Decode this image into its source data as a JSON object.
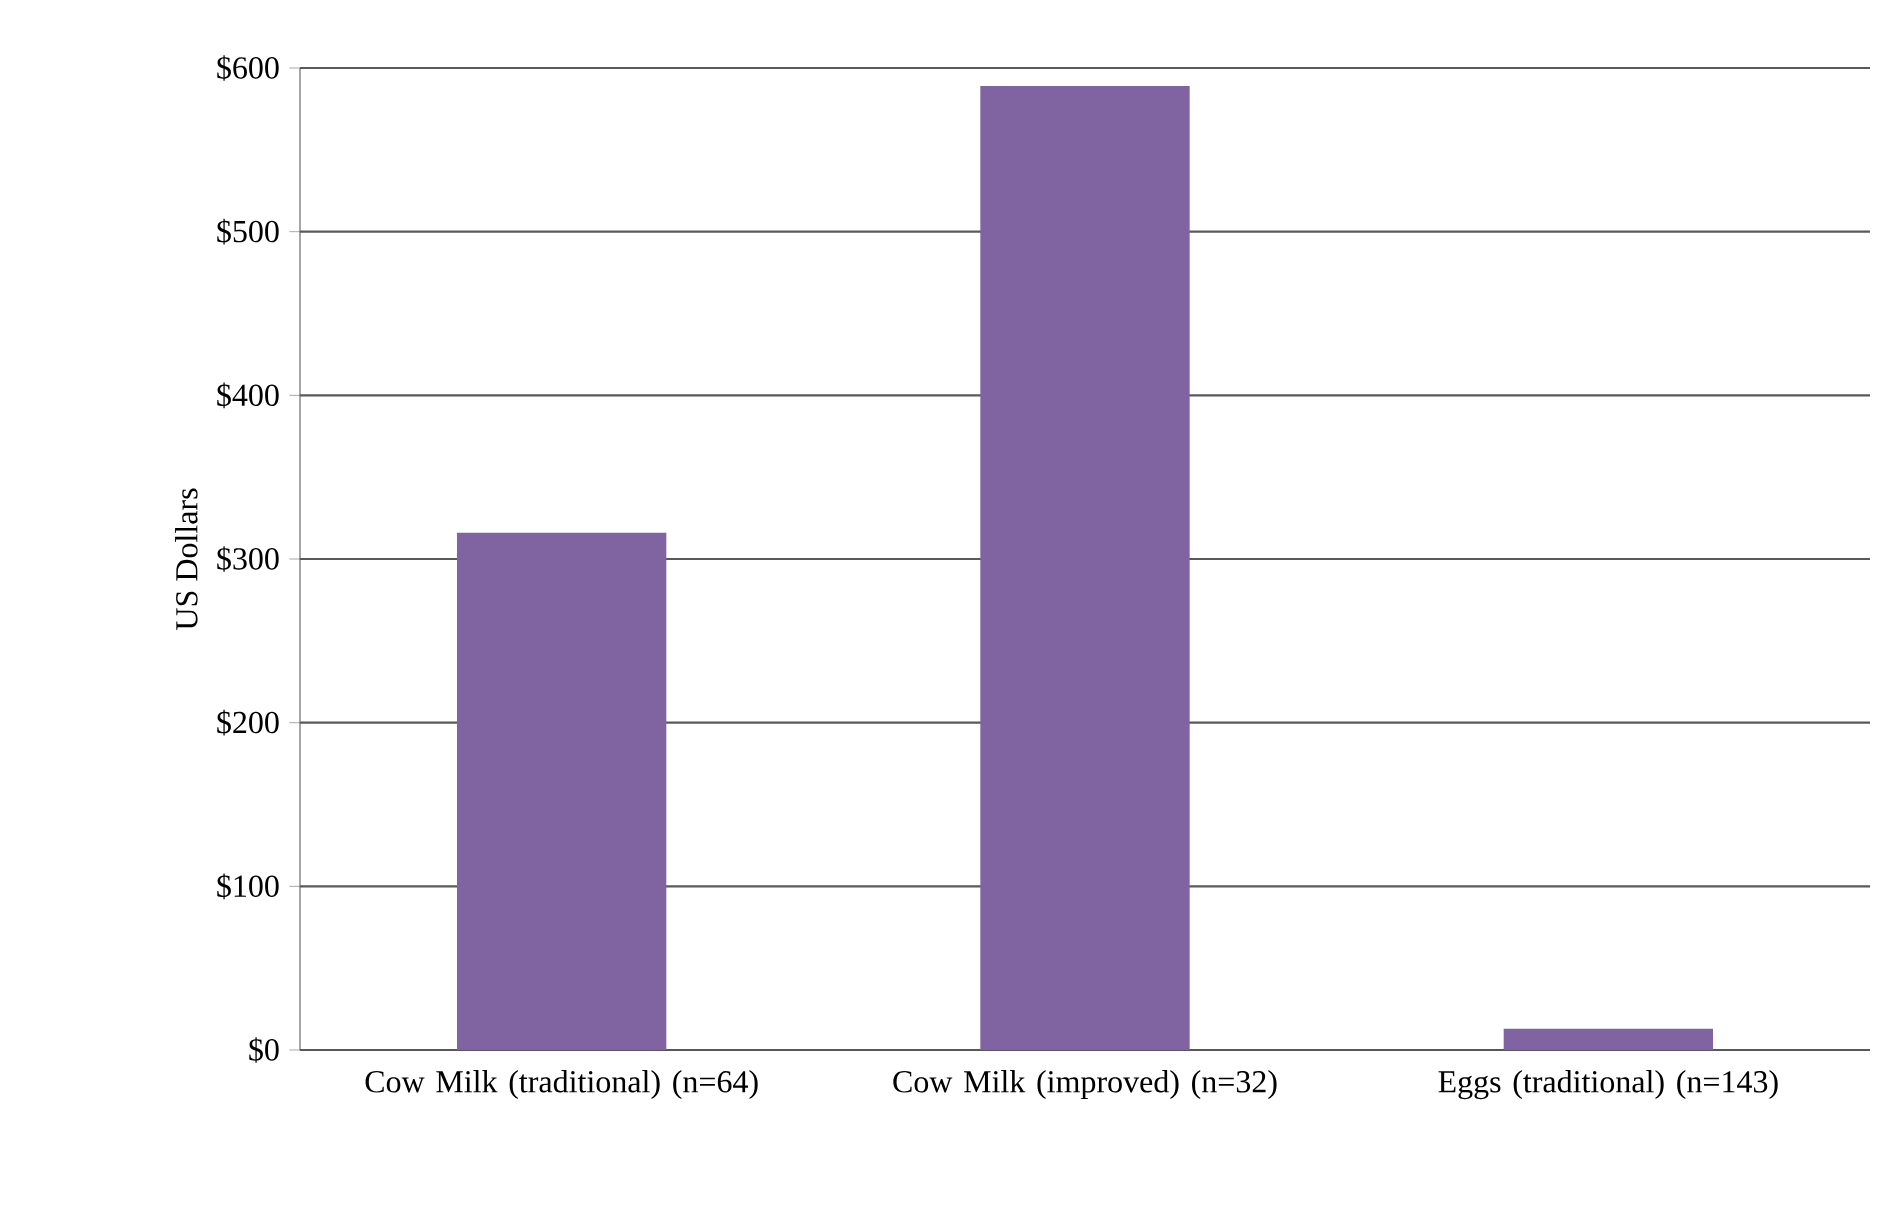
{
  "chart_data": {
    "type": "bar",
    "ylabel": "US Dollars",
    "categories": [
      "Cow Milk (traditional) (n=64)",
      "Cow Milk (improved) (n=32)",
      "Eggs (traditional) (n=143)"
    ],
    "values": [
      316,
      589,
      13
    ],
    "color": "#8064a2",
    "ylim": [
      0,
      600
    ],
    "yticks": [
      {
        "value": 0,
        "label": "$0"
      },
      {
        "value": 100,
        "label": "$100"
      },
      {
        "value": 200,
        "label": "$200"
      },
      {
        "value": 300,
        "label": "$300"
      },
      {
        "value": 400,
        "label": "$400"
      },
      {
        "value": 500,
        "label": "$500"
      },
      {
        "value": 600,
        "label": "$600"
      }
    ],
    "grid": "y"
  }
}
